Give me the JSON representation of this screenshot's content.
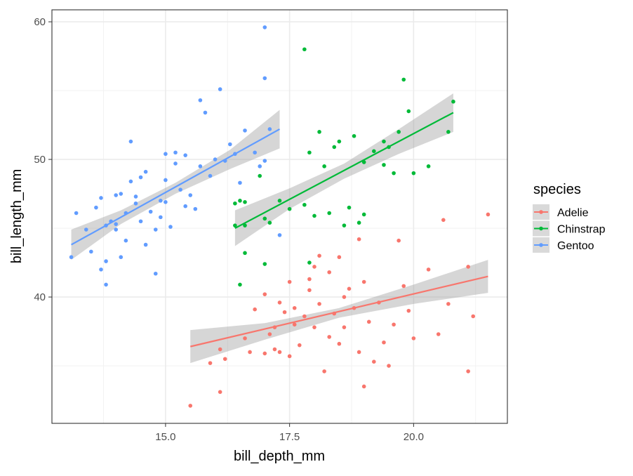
{
  "chart_data": {
    "type": "scatter",
    "xlabel": "bill_depth_mm",
    "ylabel": "bill_length_mm",
    "xlim": [
      12.71,
      21.89
    ],
    "ylim": [
      30.82,
      60.87
    ],
    "xticks": [
      15.0,
      17.5,
      20.0
    ],
    "xtick_labels": [
      "15.0",
      "17.5",
      "20.0"
    ],
    "xminor": [
      13.75,
      16.25,
      18.75,
      21.25
    ],
    "yticks": [
      40,
      50,
      60
    ],
    "ytick_labels": [
      "40",
      "50",
      "60"
    ],
    "yminor": [
      35,
      45,
      55
    ],
    "grid": true,
    "legend": {
      "title": "species",
      "position": "right"
    },
    "series": [
      {
        "name": "Adelie",
        "color": "#F8766D",
        "points": [
          [
            15.5,
            32.1
          ],
          [
            15.9,
            35.2
          ],
          [
            16.1,
            36.2
          ],
          [
            16.1,
            33.1
          ],
          [
            16.2,
            35.5
          ],
          [
            16.6,
            37.0
          ],
          [
            16.7,
            36.0
          ],
          [
            16.8,
            39.1
          ],
          [
            17.0,
            35.9
          ],
          [
            17.0,
            40.2
          ],
          [
            17.1,
            37.3
          ],
          [
            17.2,
            37.8
          ],
          [
            17.2,
            36.2
          ],
          [
            17.3,
            36.0
          ],
          [
            17.4,
            38.9
          ],
          [
            17.5,
            41.1
          ],
          [
            17.5,
            35.7
          ],
          [
            17.6,
            39.2
          ],
          [
            17.7,
            36.5
          ],
          [
            17.8,
            38.6
          ],
          [
            17.9,
            40.5
          ],
          [
            18.0,
            37.8
          ],
          [
            18.0,
            42.2
          ],
          [
            18.1,
            39.5
          ],
          [
            18.2,
            34.6
          ],
          [
            18.3,
            41.8
          ],
          [
            18.4,
            38.8
          ],
          [
            18.5,
            36.6
          ],
          [
            18.5,
            42.9
          ],
          [
            18.6,
            37.8
          ],
          [
            18.7,
            40.6
          ],
          [
            18.8,
            39.2
          ],
          [
            18.9,
            36.0
          ],
          [
            19.0,
            41.1
          ],
          [
            19.1,
            38.2
          ],
          [
            19.2,
            35.3
          ],
          [
            19.3,
            39.6
          ],
          [
            19.4,
            36.7
          ],
          [
            19.5,
            35.0
          ],
          [
            19.6,
            38.0
          ],
          [
            19.7,
            44.1
          ],
          [
            19.9,
            39.0
          ],
          [
            20.0,
            37.0
          ],
          [
            20.3,
            42.0
          ],
          [
            20.5,
            37.3
          ],
          [
            20.6,
            45.6
          ],
          [
            20.7,
            39.5
          ],
          [
            21.1,
            42.2
          ],
          [
            21.1,
            34.6
          ],
          [
            21.2,
            38.6
          ],
          [
            21.5,
            46.0
          ],
          [
            19.0,
            33.5
          ],
          [
            18.9,
            44.2
          ],
          [
            17.9,
            41.3
          ],
          [
            18.3,
            37.1
          ],
          [
            18.6,
            40.0
          ],
          [
            17.6,
            38.0
          ],
          [
            18.1,
            43.0
          ],
          [
            19.8,
            40.8
          ],
          [
            17.3,
            39.6
          ]
        ],
        "fit": [
          [
            15.5,
            36.4
          ],
          [
            21.5,
            41.5
          ]
        ],
        "band": [
          [
            15.5,
            35.2,
            37.6
          ],
          [
            17.0,
            36.9,
            38.1
          ],
          [
            18.5,
            38.5,
            39.2
          ],
          [
            20.0,
            39.5,
            40.9
          ],
          [
            21.5,
            40.3,
            42.7
          ]
        ]
      },
      {
        "name": "Chinstrap",
        "color": "#00BA38",
        "points": [
          [
            16.4,
            46.8
          ],
          [
            16.4,
            45.2
          ],
          [
            16.5,
            47.0
          ],
          [
            16.6,
            43.2
          ],
          [
            16.6,
            45.2
          ],
          [
            16.5,
            40.9
          ],
          [
            16.6,
            46.9
          ],
          [
            16.9,
            48.8
          ],
          [
            17.0,
            45.7
          ],
          [
            17.0,
            42.4
          ],
          [
            17.1,
            45.4
          ],
          [
            17.3,
            47.0
          ],
          [
            17.5,
            46.4
          ],
          [
            17.8,
            58.0
          ],
          [
            17.8,
            46.7
          ],
          [
            17.9,
            42.5
          ],
          [
            17.9,
            50.5
          ],
          [
            18.0,
            45.9
          ],
          [
            18.1,
            52.0
          ],
          [
            18.2,
            49.5
          ],
          [
            18.3,
            46.1
          ],
          [
            18.4,
            50.9
          ],
          [
            18.5,
            51.3
          ],
          [
            18.6,
            45.2
          ],
          [
            18.7,
            46.5
          ],
          [
            18.8,
            51.7
          ],
          [
            18.9,
            45.4
          ],
          [
            19.0,
            49.8
          ],
          [
            19.0,
            46.0
          ],
          [
            19.2,
            50.6
          ],
          [
            19.4,
            51.3
          ],
          [
            19.4,
            49.6
          ],
          [
            19.5,
            50.9
          ],
          [
            19.6,
            49.0
          ],
          [
            19.7,
            52.0
          ],
          [
            19.8,
            55.8
          ],
          [
            19.9,
            53.5
          ],
          [
            20.0,
            49.0
          ],
          [
            20.3,
            49.5
          ],
          [
            20.7,
            52.0
          ],
          [
            20.8,
            54.2
          ]
        ],
        "fit": [
          [
            16.4,
            45.0
          ],
          [
            20.8,
            53.4
          ]
        ],
        "band": [
          [
            16.4,
            43.7,
            46.3
          ],
          [
            17.5,
            46.4,
            47.9
          ],
          [
            18.6,
            48.6,
            49.7
          ],
          [
            19.7,
            50.4,
            52.2
          ],
          [
            20.8,
            52.0,
            54.8
          ]
        ]
      },
      {
        "name": "Gentoo",
        "color": "#619CFF",
        "points": [
          [
            13.1,
            42.9
          ],
          [
            13.2,
            46.1
          ],
          [
            13.4,
            44.9
          ],
          [
            13.5,
            43.3
          ],
          [
            13.6,
            46.5
          ],
          [
            13.7,
            42.0
          ],
          [
            13.7,
            47.2
          ],
          [
            13.8,
            45.2
          ],
          [
            13.8,
            42.6
          ],
          [
            13.8,
            40.9
          ],
          [
            13.9,
            45.5
          ],
          [
            14.0,
            44.9
          ],
          [
            14.0,
            45.3
          ],
          [
            14.1,
            42.9
          ],
          [
            14.1,
            47.5
          ],
          [
            14.2,
            46.1
          ],
          [
            14.2,
            44.1
          ],
          [
            14.3,
            51.3
          ],
          [
            14.3,
            48.4
          ],
          [
            14.4,
            47.3
          ],
          [
            14.5,
            48.7
          ],
          [
            14.5,
            45.5
          ],
          [
            14.6,
            43.8
          ],
          [
            14.6,
            49.1
          ],
          [
            14.7,
            46.2
          ],
          [
            14.8,
            44.9
          ],
          [
            14.8,
            41.7
          ],
          [
            14.9,
            47.0
          ],
          [
            15.0,
            50.4
          ],
          [
            15.0,
            48.5
          ],
          [
            15.0,
            46.9
          ],
          [
            15.1,
            45.1
          ],
          [
            15.2,
            49.7
          ],
          [
            15.2,
            50.5
          ],
          [
            15.3,
            47.8
          ],
          [
            15.4,
            46.6
          ],
          [
            15.5,
            47.4
          ],
          [
            15.7,
            49.5
          ],
          [
            15.7,
            54.3
          ],
          [
            15.8,
            53.4
          ],
          [
            15.9,
            48.8
          ],
          [
            16.0,
            50.0
          ],
          [
            16.1,
            55.1
          ],
          [
            16.2,
            49.9
          ],
          [
            16.3,
            51.1
          ],
          [
            16.4,
            50.4
          ],
          [
            16.6,
            52.1
          ],
          [
            16.8,
            50.5
          ],
          [
            17.0,
            59.6
          ],
          [
            17.0,
            55.9
          ],
          [
            17.1,
            52.2
          ],
          [
            17.0,
            49.9
          ],
          [
            16.9,
            49.5
          ],
          [
            17.3,
            44.5
          ],
          [
            14.4,
            46.8
          ],
          [
            14.9,
            45.8
          ],
          [
            15.6,
            46.4
          ],
          [
            14.0,
            47.4
          ],
          [
            15.4,
            50.3
          ],
          [
            16.5,
            48.3
          ]
        ],
        "fit": [
          [
            13.1,
            43.8
          ],
          [
            17.3,
            52.2
          ]
        ],
        "band": [
          [
            13.1,
            42.7,
            44.9
          ],
          [
            14.1,
            45.3,
            46.3
          ],
          [
            15.2,
            47.5,
            48.3
          ],
          [
            16.3,
            49.3,
            50.7
          ],
          [
            17.3,
            50.8,
            53.6
          ]
        ]
      }
    ]
  }
}
